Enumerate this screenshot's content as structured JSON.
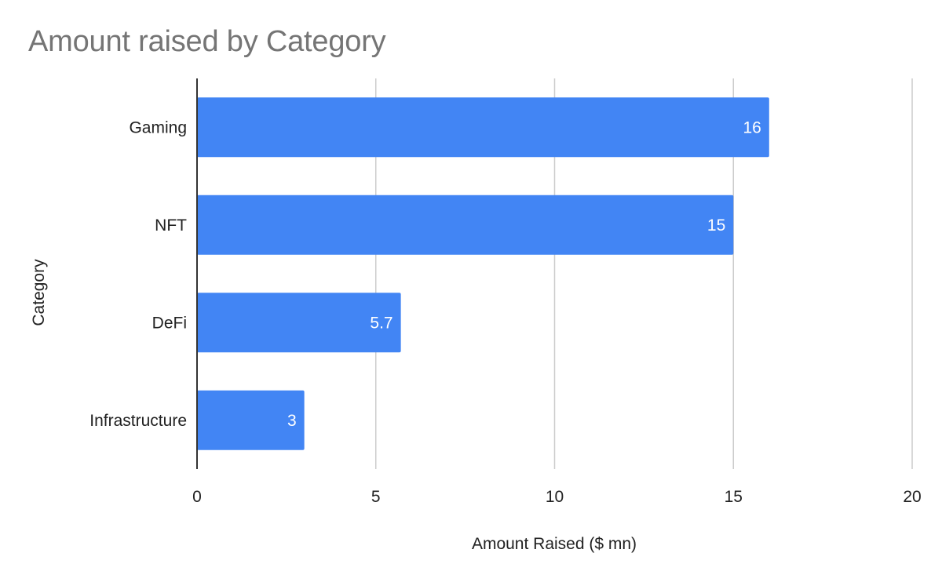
{
  "chart_data": {
    "type": "bar",
    "orientation": "horizontal",
    "title": "Amount raised by Category",
    "xlabel": "Amount Raised ($ mn)",
    "ylabel": "Category",
    "categories": [
      "Gaming",
      "NFT",
      "DeFi",
      "Infrastructure"
    ],
    "values": [
      16,
      15,
      5.7,
      3
    ],
    "data_labels": [
      "16",
      "15",
      "5.7",
      "3"
    ],
    "xlim": [
      0,
      20
    ],
    "xticks": [
      0,
      5,
      10,
      15,
      20
    ],
    "xtick_labels": [
      "0",
      "5",
      "10",
      "15",
      "20"
    ],
    "grid": true,
    "legend": "none",
    "colors": {
      "bar": "#4285f4",
      "grid": "#cccccc",
      "axis": "#333333",
      "title": "#757575",
      "data_label": "#ffffff"
    }
  }
}
